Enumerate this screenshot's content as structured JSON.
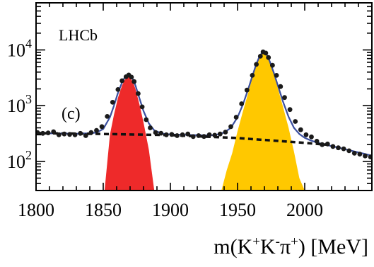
{
  "chart_data": {
    "type": "line",
    "annotations": {
      "experiment": "LHCb",
      "panel": "(c)"
    },
    "xlabel": {
      "prefix": "m(K",
      "sup1": "+",
      "mid1": "K",
      "sup2": "-",
      "mid2": "π",
      "sup3": "+",
      "suffix": ") [MeV]"
    },
    "ylabel": "",
    "xlim": [
      1800,
      2050
    ],
    "ylim": [
      30,
      70000
    ],
    "y_scale": "log",
    "x_ticks": [
      {
        "value": 1800,
        "label": "1800"
      },
      {
        "value": 1850,
        "label": "1850"
      },
      {
        "value": 1900,
        "label": "1900"
      },
      {
        "value": 1950,
        "label": "1950"
      },
      {
        "value": 2000,
        "label": "2000"
      }
    ],
    "y_ticks": [
      {
        "value": 100,
        "base": "10",
        "exp": "2"
      },
      {
        "value": 1000,
        "base": "10",
        "exp": "3"
      },
      {
        "value": 10000,
        "base": "10",
        "exp": "4"
      }
    ],
    "colors": {
      "fit_curve": "#3a4fa0",
      "data_points": "#1a1a1a",
      "background_curve": "#111111",
      "peak1_fill": "#ee2a2a",
      "peak2_fill": "#ffc800"
    },
    "series": [
      {
        "role": "data",
        "x": [
          1801,
          1805,
          1809,
          1813,
          1817,
          1821,
          1825,
          1829,
          1833,
          1837,
          1841,
          1845,
          1849,
          1853,
          1857,
          1861,
          1864,
          1867,
          1869,
          1871,
          1873,
          1876,
          1879,
          1882,
          1885,
          1889,
          1893,
          1897,
          1901,
          1905,
          1909,
          1913,
          1917,
          1921,
          1925,
          1929,
          1933,
          1937,
          1941,
          1945,
          1949,
          1953,
          1957,
          1961,
          1964,
          1967,
          1969,
          1971,
          1973,
          1976,
          1979,
          1982,
          1985,
          1989,
          1993,
          1997,
          2001,
          2005,
          2009,
          2013,
          2017,
          2021,
          2025,
          2029,
          2033,
          2037,
          2041,
          2045,
          2049
        ],
        "y": [
          330,
          318,
          325,
          340,
          300,
          310,
          305,
          300,
          318,
          290,
          330,
          360,
          420,
          640,
          1150,
          1950,
          2800,
          3300,
          3550,
          3250,
          2700,
          1650,
          950,
          560,
          400,
          330,
          320,
          300,
          305,
          290,
          300,
          310,
          278,
          290,
          280,
          300,
          295,
          310,
          335,
          420,
          620,
          1080,
          1900,
          3500,
          5500,
          7700,
          9200,
          8800,
          7300,
          5300,
          3500,
          2200,
          1400,
          850,
          520,
          370,
          300,
          275,
          230,
          200,
          205,
          185,
          175,
          168,
          155,
          140,
          135,
          125,
          120
        ]
      },
      {
        "role": "fit",
        "x": [
          1800,
          1810,
          1820,
          1830,
          1840,
          1845,
          1850,
          1855,
          1858,
          1861,
          1864,
          1866,
          1868,
          1869,
          1870,
          1872,
          1874,
          1877,
          1880,
          1884,
          1888,
          1894,
          1900,
          1910,
          1920,
          1930,
          1935,
          1940,
          1945,
          1950,
          1954,
          1958,
          1961,
          1964,
          1966,
          1968,
          1969,
          1970,
          1972,
          1974,
          1977,
          1980,
          1984,
          1988,
          1992,
          1996,
          2000,
          2005,
          2010,
          2020,
          2030,
          2040,
          2050
        ],
        "y": [
          320,
          318,
          316,
          314,
          320,
          330,
          380,
          620,
          1000,
          1700,
          2600,
          3200,
          3500,
          3550,
          3450,
          3000,
          2300,
          1350,
          800,
          480,
          360,
          315,
          305,
          300,
          296,
          292,
          305,
          330,
          400,
          620,
          1050,
          2000,
          3400,
          5600,
          7300,
          8800,
          9300,
          9100,
          8000,
          6200,
          3900,
          2300,
          1150,
          630,
          400,
          310,
          265,
          235,
          215,
          188,
          165,
          145,
          127
        ]
      },
      {
        "role": "combinatorial-background",
        "x": [
          1800,
          1850,
          1900,
          1950,
          2000,
          2020
        ],
        "y": [
          322,
          310,
          296,
          262,
          215,
          196
        ]
      }
    ],
    "peaks": [
      {
        "x": [
          1851,
          1855,
          1858,
          1861,
          1864,
          1866,
          1868,
          1869,
          1870,
          1872,
          1874,
          1877,
          1880,
          1884,
          1888
        ],
        "y": [
          30,
          300,
          690,
          1390,
          2300,
          2900,
          3200,
          3250,
          3150,
          2700,
          2000,
          1050,
          500,
          160,
          30
        ]
      },
      {
        "x": [
          1938,
          1942,
          1946,
          1950,
          1954,
          1958,
          1961,
          1964,
          1966,
          1968,
          1969,
          1970,
          1972,
          1974,
          1977,
          1980,
          1984,
          1988,
          1992,
          1996,
          2000
        ],
        "y": [
          30,
          70,
          140,
          350,
          790,
          1720,
          3100,
          5300,
          7000,
          8500,
          9000,
          8800,
          7700,
          5900,
          3630,
          2060,
          920,
          400,
          150,
          50,
          30
        ]
      }
    ]
  }
}
